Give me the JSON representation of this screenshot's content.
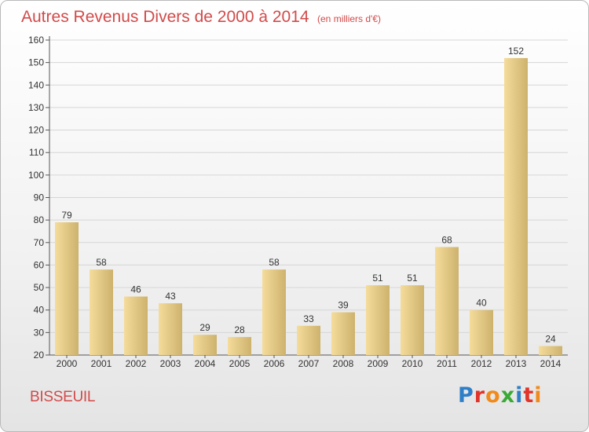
{
  "header": {
    "title": "Autres Revenus Divers de 2000 à 2014",
    "subtitle": "(en milliers d'€)"
  },
  "footer": {
    "commune": "BISSEUIL",
    "brand": "Proxiti",
    "brand_colors": [
      "#2e7fc7",
      "#e0352b",
      "#f08a1c",
      "#3aa935",
      "#2e7fc7",
      "#e0352b",
      "#f08a1c"
    ]
  },
  "chart_data": {
    "type": "bar",
    "title": "Autres Revenus Divers de 2000 à 2014",
    "subtitle": "(en milliers d'€)",
    "categories": [
      "2000",
      "2001",
      "2002",
      "2003",
      "2004",
      "2005",
      "2006",
      "2007",
      "2008",
      "2009",
      "2010",
      "2011",
      "2012",
      "2013",
      "2014"
    ],
    "values": [
      79,
      58,
      46,
      43,
      29,
      28,
      58,
      33,
      39,
      51,
      51,
      68,
      40,
      152,
      24
    ],
    "ylim": [
      20,
      160
    ],
    "yticks": [
      20,
      30,
      40,
      50,
      60,
      70,
      80,
      90,
      100,
      110,
      120,
      130,
      140,
      150,
      160
    ],
    "grid": true,
    "bar_color_light": "#f5dc9b",
    "bar_color_dark": "#cdb26d",
    "text_color": "#d24a4a"
  }
}
